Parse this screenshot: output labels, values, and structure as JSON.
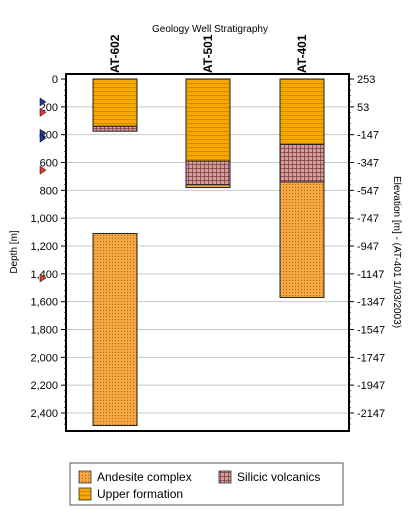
{
  "chart_data": {
    "type": "bar",
    "title": "Geology Well Stratigraphy",
    "ylabel": "Depth [m]",
    "y2label": "Elevation [m] - (AT-401 1/03/2003)",
    "ylim": [
      0,
      2500
    ],
    "y_ticks": [
      0,
      200,
      400,
      600,
      800,
      1000,
      1200,
      1400,
      1600,
      1800,
      2000,
      2200,
      2400
    ],
    "y_tick_labels": [
      "0",
      "200",
      "400",
      "600",
      "800",
      "1,000",
      "1,200",
      "1,400",
      "1,600",
      "1,800",
      "2,000",
      "2,200",
      "2,400"
    ],
    "y2_tick_labels": [
      "253",
      "53",
      "-147",
      "-347",
      "-547",
      "-747",
      "-947",
      "-1147",
      "-1347",
      "-1547",
      "-1747",
      "-1947",
      "-2147"
    ],
    "grid": true,
    "legend_position": "bottom",
    "wells": [
      {
        "name": "AT-602",
        "intervals": [
          {
            "unit": "Upper formation",
            "top": 0,
            "bottom": 340
          },
          {
            "unit": "Silicic volcanics",
            "top": 340,
            "bottom": 375
          },
          {
            "unit": "Andesite complex",
            "top": 1110,
            "bottom": 2490
          }
        ]
      },
      {
        "name": "AT-501",
        "intervals": [
          {
            "unit": "Upper formation",
            "top": 0,
            "bottom": 590
          },
          {
            "unit": "Silicic volcanics",
            "top": 590,
            "bottom": 760
          },
          {
            "unit": "Andesite complex",
            "top": 760,
            "bottom": 780
          }
        ]
      },
      {
        "name": "AT-401",
        "intervals": [
          {
            "unit": "Upper formation",
            "top": 0,
            "bottom": 470
          },
          {
            "unit": "Silicic volcanics",
            "top": 470,
            "bottom": 740
          },
          {
            "unit": "Andesite complex",
            "top": 740,
            "bottom": 1570
          }
        ]
      }
    ],
    "markers": [
      {
        "depth": 165,
        "color": "#1f3a93"
      },
      {
        "depth": 240,
        "color": "#e53935"
      },
      {
        "depth": 390,
        "color": "#1f3a93"
      },
      {
        "depth": 425,
        "color": "#1f3a93"
      },
      {
        "depth": 655,
        "color": "#e53935"
      },
      {
        "depth": 1430,
        "color": "#e53935"
      }
    ],
    "legend": [
      {
        "label": "Andesite complex",
        "pattern": "dots",
        "color": "#f4a640"
      },
      {
        "label": "Silicic volcanics",
        "pattern": "crosshatch",
        "color": "#d99a9a"
      },
      {
        "label": "Upper formation",
        "pattern": "hlines",
        "color": "#f7a800"
      }
    ],
    "colors": {
      "upper": "#f7a800",
      "andesite": "#f4a640",
      "silicic": "#d99a9a",
      "grid": "#c8c8c8"
    }
  }
}
